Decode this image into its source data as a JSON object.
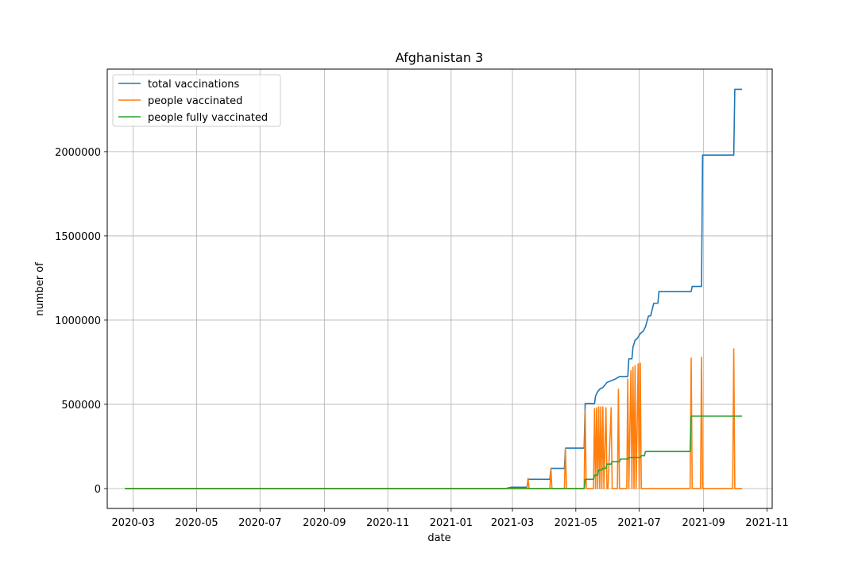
{
  "chart_data": {
    "type": "line",
    "title": "Afghanistan 3",
    "xlabel": "date",
    "ylabel": "number of",
    "x_tick_labels": [
      "2020-03",
      "2020-05",
      "2020-07",
      "2020-09",
      "2020-11",
      "2021-01",
      "2021-03",
      "2021-05",
      "2021-07",
      "2021-09",
      "2021-11"
    ],
    "y_tick_labels": [
      "0",
      "500000",
      "1000000",
      "1500000",
      "2000000"
    ],
    "xlim": [
      "2020-02-05",
      "2021-11-06"
    ],
    "ylim": [
      -118000,
      2490000
    ],
    "grid": true,
    "legend_position": "top-left",
    "series": [
      {
        "name": "total vaccinations",
        "color": "#1f77b4",
        "x": [
          "2020-02-22",
          "2021-02-22",
          "2021-02-28",
          "2021-03-15",
          "2021-03-16",
          "2021-04-06",
          "2021-04-07",
          "2021-04-20",
          "2021-04-21",
          "2021-05-09",
          "2021-05-10",
          "2021-05-19",
          "2021-05-20",
          "2021-05-22",
          "2021-05-24",
          "2021-05-27",
          "2021-05-31",
          "2021-06-04",
          "2021-06-08",
          "2021-06-12",
          "2021-06-20",
          "2021-06-21",
          "2021-06-24",
          "2021-06-25",
          "2021-06-27",
          "2021-06-29",
          "2021-07-02",
          "2021-07-05",
          "2021-07-07",
          "2021-07-10",
          "2021-07-12",
          "2021-07-15",
          "2021-07-19",
          "2021-07-20",
          "2021-08-20",
          "2021-08-21",
          "2021-08-30",
          "2021-08-31",
          "2021-09-30",
          "2021-10-01",
          "2021-10-08"
        ],
        "y": [
          0,
          0,
          8200,
          8200,
          55000,
          55000,
          120000,
          120000,
          240000,
          240000,
          505000,
          505000,
          550000,
          575000,
          590000,
          600000,
          630000,
          640000,
          650000,
          665000,
          665000,
          770000,
          770000,
          840000,
          880000,
          890000,
          920000,
          935000,
          960000,
          1025000,
          1025000,
          1100000,
          1100000,
          1170000,
          1170000,
          1200000,
          1200000,
          1980000,
          1980000,
          2370000,
          2370000
        ]
      },
      {
        "name": "people vaccinated",
        "color": "#ff7f0e",
        "x": [
          "2020-02-22",
          "2021-03-15",
          "2021-03-16",
          "2021-03-17",
          "2021-04-06",
          "2021-04-07",
          "2021-04-08",
          "2021-04-20",
          "2021-04-21",
          "2021-04-22",
          "2021-05-09",
          "2021-05-10",
          "2021-05-11",
          "2021-05-18",
          "2021-05-19",
          "2021-05-20",
          "2021-05-21",
          "2021-05-22",
          "2021-05-23",
          "2021-05-24",
          "2021-05-25",
          "2021-05-26",
          "2021-05-27",
          "2021-05-28",
          "2021-05-30",
          "2021-05-31",
          "2021-06-01",
          "2021-06-04",
          "2021-06-05",
          "2021-06-06",
          "2021-06-10",
          "2021-06-11",
          "2021-06-12",
          "2021-06-19",
          "2021-06-20",
          "2021-06-21",
          "2021-06-23",
          "2021-06-24",
          "2021-06-25",
          "2021-06-26",
          "2021-06-27",
          "2021-06-28",
          "2021-06-30",
          "2021-07-01",
          "2021-07-02",
          "2021-07-03",
          "2021-07-04",
          "2021-07-06",
          "2021-07-07",
          "2021-07-08",
          "2021-08-19",
          "2021-08-20",
          "2021-08-21",
          "2021-08-29",
          "2021-08-30",
          "2021-08-31",
          "2021-09-29",
          "2021-09-30",
          "2021-10-01",
          "2021-10-08"
        ],
        "y": [
          0,
          0,
          60000,
          0,
          0,
          120000,
          0,
          0,
          240000,
          0,
          0,
          470000,
          0,
          0,
          475000,
          0,
          480000,
          0,
          485000,
          0,
          485000,
          0,
          485000,
          0,
          480000,
          0,
          0,
          480000,
          0,
          0,
          0,
          590000,
          0,
          0,
          650000,
          0,
          700000,
          0,
          720000,
          0,
          730000,
          0,
          740000,
          0,
          745000,
          0,
          0,
          0,
          0,
          0,
          0,
          775000,
          0,
          0,
          780000,
          0,
          0,
          830000,
          0,
          0
        ]
      },
      {
        "name": "people fully vaccinated",
        "color": "#2ca02c",
        "x": [
          "2020-02-22",
          "2021-05-09",
          "2021-05-10",
          "2021-05-18",
          "2021-05-19",
          "2021-05-22",
          "2021-05-23",
          "2021-05-26",
          "2021-05-27",
          "2021-05-30",
          "2021-05-31",
          "2021-06-04",
          "2021-06-05",
          "2021-06-12",
          "2021-06-13",
          "2021-06-20",
          "2021-06-21",
          "2021-07-02",
          "2021-07-03",
          "2021-07-06",
          "2021-07-07",
          "2021-08-19",
          "2021-08-20",
          "2021-10-08"
        ],
        "y": [
          0,
          0,
          55000,
          55000,
          80000,
          80000,
          110000,
          110000,
          120000,
          120000,
          145000,
          145000,
          160000,
          160000,
          175000,
          175000,
          185000,
          185000,
          195000,
          195000,
          220000,
          220000,
          430000,
          430000
        ]
      }
    ]
  }
}
